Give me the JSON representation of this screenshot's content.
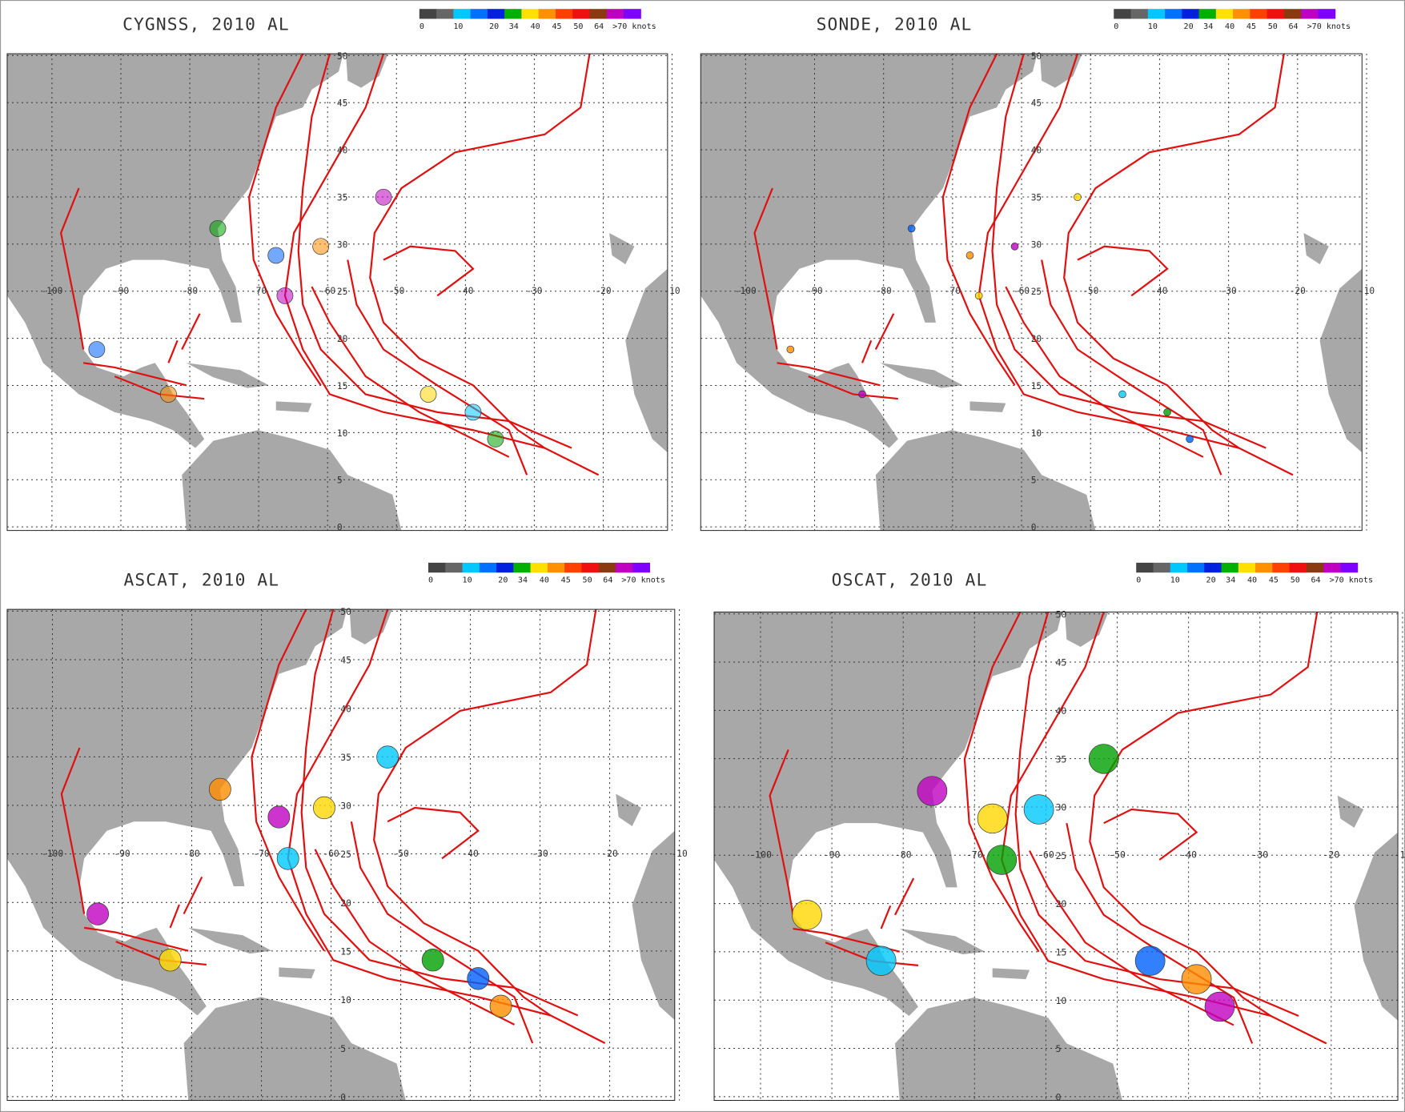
{
  "panels": [
    {
      "title": "CYGNSS, 2010 AL"
    },
    {
      "title": "SONDE, 2010 AL"
    },
    {
      "title": "ASCAT, 2010 AL"
    },
    {
      "title": "OSCAT, 2010 AL"
    }
  ],
  "colorbar": {
    "labels": [
      "0",
      "10",
      "20",
      "34",
      "40",
      "45",
      "50",
      "64",
      ">70 knots"
    ]
  },
  "map": {
    "lon_labels": [
      "-100",
      "-90",
      "-80",
      "-70",
      "-60",
      "-50",
      "-40",
      "-30",
      "-20",
      "-10"
    ],
    "lat_labels": [
      "0",
      "5",
      "10",
      "15",
      "20",
      "25",
      "30",
      "35",
      "40",
      "45",
      "50"
    ]
  }
}
